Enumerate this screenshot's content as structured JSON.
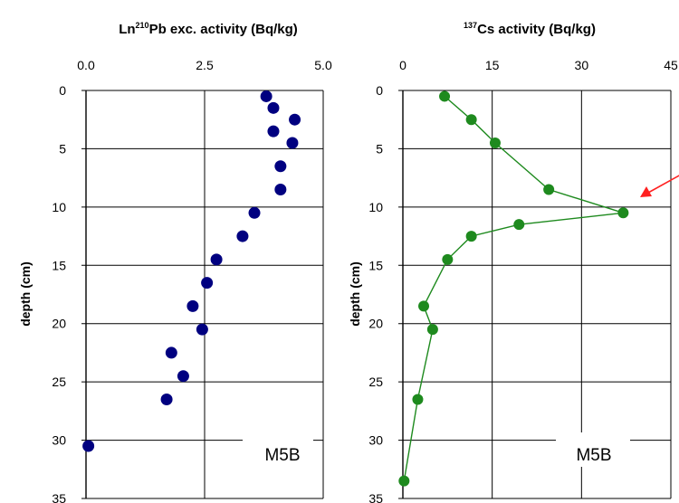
{
  "chart_data": [
    {
      "type": "scatter",
      "title_prefix": "Ln",
      "title_superscript": "210",
      "title_suffix": "Pb exc. activity (Bq/kg)",
      "ylabel": "depth (cm)",
      "panel_label": "M5B",
      "xlim": [
        0,
        5
      ],
      "ylim": [
        35,
        0
      ],
      "y_reversed": true,
      "x_axis_position": "top",
      "xticks": [
        "0.0",
        "2.5",
        "5.0"
      ],
      "yticks": [
        "0",
        "5",
        "10",
        "15",
        "20",
        "25",
        "30",
        "35"
      ],
      "grid": true,
      "marker_color": "#000080",
      "series": [
        {
          "points": [
            {
              "x": 3.8,
              "y": 0.5
            },
            {
              "x": 3.95,
              "y": 1.5
            },
            {
              "x": 4.4,
              "y": 2.5
            },
            {
              "x": 3.95,
              "y": 3.5
            },
            {
              "x": 4.35,
              "y": 4.5
            },
            {
              "x": 4.1,
              "y": 6.5
            },
            {
              "x": 4.1,
              "y": 8.5
            },
            {
              "x": 3.55,
              "y": 10.5
            },
            {
              "x": 3.3,
              "y": 12.5
            },
            {
              "x": 2.75,
              "y": 14.5
            },
            {
              "x": 2.55,
              "y": 16.5
            },
            {
              "x": 2.25,
              "y": 18.5
            },
            {
              "x": 2.45,
              "y": 20.5
            },
            {
              "x": 1.8,
              "y": 22.5
            },
            {
              "x": 2.05,
              "y": 24.5
            },
            {
              "x": 1.7,
              "y": 26.5
            },
            {
              "x": 0.05,
              "y": 30.5
            }
          ]
        }
      ]
    },
    {
      "type": "line",
      "title_superscript": "137",
      "title_suffix": "Cs activity (Bq/kg)",
      "ylabel": "depth (cm)",
      "panel_label": "M5B",
      "xlim": [
        0,
        45
      ],
      "ylim": [
        35,
        0
      ],
      "y_reversed": true,
      "x_axis_position": "top",
      "xticks": [
        "0",
        "15",
        "30",
        "45"
      ],
      "yticks": [
        "0",
        "5",
        "10",
        "15",
        "20",
        "25",
        "30",
        "35"
      ],
      "grid": true,
      "line_color": "#1e8a1e",
      "marker_color": "#1e8a1e",
      "annotation_arrow_color": "#ff2020",
      "series": [
        {
          "points": [
            {
              "x": 7,
              "y": 0.5
            },
            {
              "x": 11.5,
              "y": 2.5
            },
            {
              "x": 15.5,
              "y": 4.5
            },
            {
              "x": 24.5,
              "y": 8.5
            },
            {
              "x": 37,
              "y": 10.5
            },
            {
              "x": 19.5,
              "y": 11.5
            },
            {
              "x": 11.5,
              "y": 12.5
            },
            {
              "x": 7.5,
              "y": 14.5
            },
            {
              "x": 3.5,
              "y": 18.5
            },
            {
              "x": 5,
              "y": 20.5
            },
            {
              "x": 2.5,
              "y": 26.5
            },
            {
              "x": 0.2,
              "y": 33.5
            }
          ]
        }
      ]
    }
  ]
}
